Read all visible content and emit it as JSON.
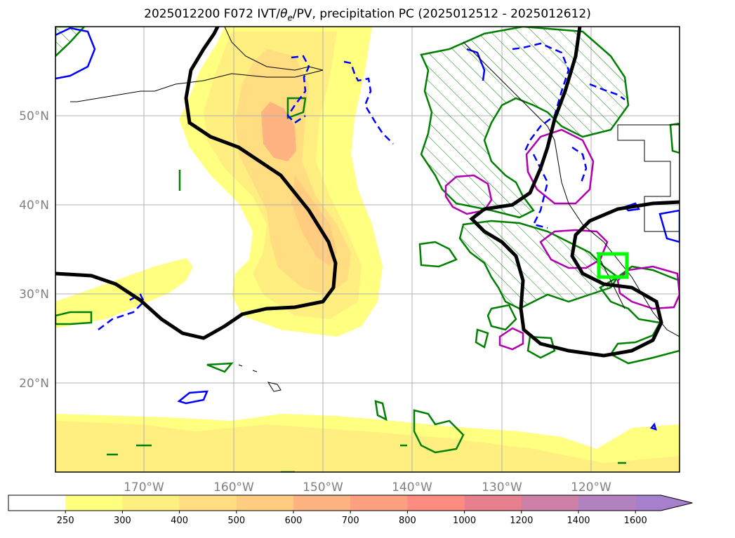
{
  "title": {
    "prefix": "2025012200 F072 IVT/",
    "theta": "θ",
    "theta_sub": "e",
    "suffix": "/PV, precipitation PC (2025012512 - 2025012612)"
  },
  "axes": {
    "lon_labels": [
      "170°W",
      "160°W",
      "150°W",
      "140°W",
      "130°W",
      "120°W"
    ],
    "lat_labels": [
      "50°N",
      "40°N",
      "30°N",
      "20°N"
    ]
  },
  "colorbar": {
    "ticks": [
      "250",
      "300",
      "400",
      "500",
      "600",
      "700",
      "800",
      "1000",
      "1200",
      "1400",
      "1600"
    ],
    "colors": [
      "#ffffff",
      "#ffff80",
      "#ffee80",
      "#ffdd80",
      "#ffcc80",
      "#ffb380",
      "#ffa080",
      "#ff8c80",
      "#e6808c",
      "#cc80a6",
      "#b380c0",
      "#a680cc"
    ]
  },
  "colors": {
    "ivt_fill_low": "#ffff80",
    "ivt_fill_mid": "#ffee80",
    "ivt_fill_high": "#ffcc80",
    "ivt_fill_peak": "#ffb380",
    "pv_contour": "#000000",
    "theta_positive": "#0000ff",
    "precip_contour": "#008000",
    "magenta_contour": "#b000b0",
    "target_box": "#00ff00"
  }
}
